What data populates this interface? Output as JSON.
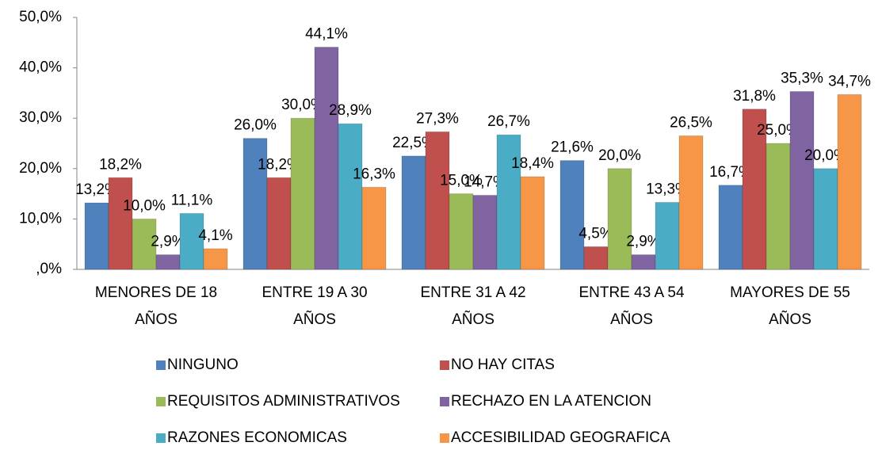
{
  "chart_data": {
    "type": "bar",
    "categories": [
      "MENORES DE 18 AÑOS",
      "ENTRE 19 A 30 AÑOS",
      "ENTRE 31 A 42 AÑOS",
      "ENTRE 43 A 54 AÑOS",
      "MAYORES DE 55 AÑOS"
    ],
    "series": [
      {
        "name": "NINGUNO",
        "color": "#4f81bd",
        "values": [
          13.2,
          26.0,
          22.5,
          21.6,
          16.7
        ],
        "value_labels": [
          "13,2%",
          "26,0%",
          "22,5%",
          "21,6%",
          "16,7%"
        ]
      },
      {
        "name": "NO HAY CITAS",
        "color": "#c0504d",
        "values": [
          18.2,
          18.2,
          27.3,
          4.5,
          31.8
        ],
        "value_labels": [
          "18,2%",
          "18,2%",
          "27,3%",
          "4,5%",
          "31,8%"
        ]
      },
      {
        "name": "REQUISITOS ADMINISTRATIVOS",
        "color": "#9bbb59",
        "values": [
          10.0,
          30.0,
          15.0,
          20.0,
          25.0
        ],
        "value_labels": [
          "10,0%",
          "30,0%",
          "15,0%",
          "20,0%",
          "25,0%"
        ]
      },
      {
        "name": "RECHAZO EN LA ATENCION",
        "color": "#8064a2",
        "values": [
          2.9,
          44.1,
          14.7,
          2.9,
          35.3
        ],
        "value_labels": [
          "2,9%",
          "44,1%",
          "14,7%",
          "2,9%",
          "35,3%"
        ]
      },
      {
        "name": "RAZONES ECONOMICAS",
        "color": "#4bacc6",
        "values": [
          11.1,
          28.9,
          26.7,
          13.3,
          20.0
        ],
        "value_labels": [
          "11,1%",
          "28,9%",
          "26,7%",
          "13,3%",
          "20,0%"
        ]
      },
      {
        "name": "ACCESIBILIDAD GEOGRAFICA",
        "color": "#f79646",
        "values": [
          4.1,
          16.3,
          18.4,
          26.5,
          34.7
        ],
        "value_labels": [
          "4,1%",
          "16,3%",
          "18,4%",
          "26,5%",
          "34,7%"
        ]
      }
    ],
    "ylim": [
      0,
      50
    ],
    "yticks": [
      {
        "value": 0,
        "label": ",0%"
      },
      {
        "value": 10,
        "label": "10,0%"
      },
      {
        "value": 20,
        "label": "20,0%"
      },
      {
        "value": 30,
        "label": "30,0%"
      },
      {
        "value": 40,
        "label": "40,0%"
      },
      {
        "value": 50,
        "label": "50,0%"
      }
    ],
    "grid": false,
    "legend": "bottom"
  }
}
